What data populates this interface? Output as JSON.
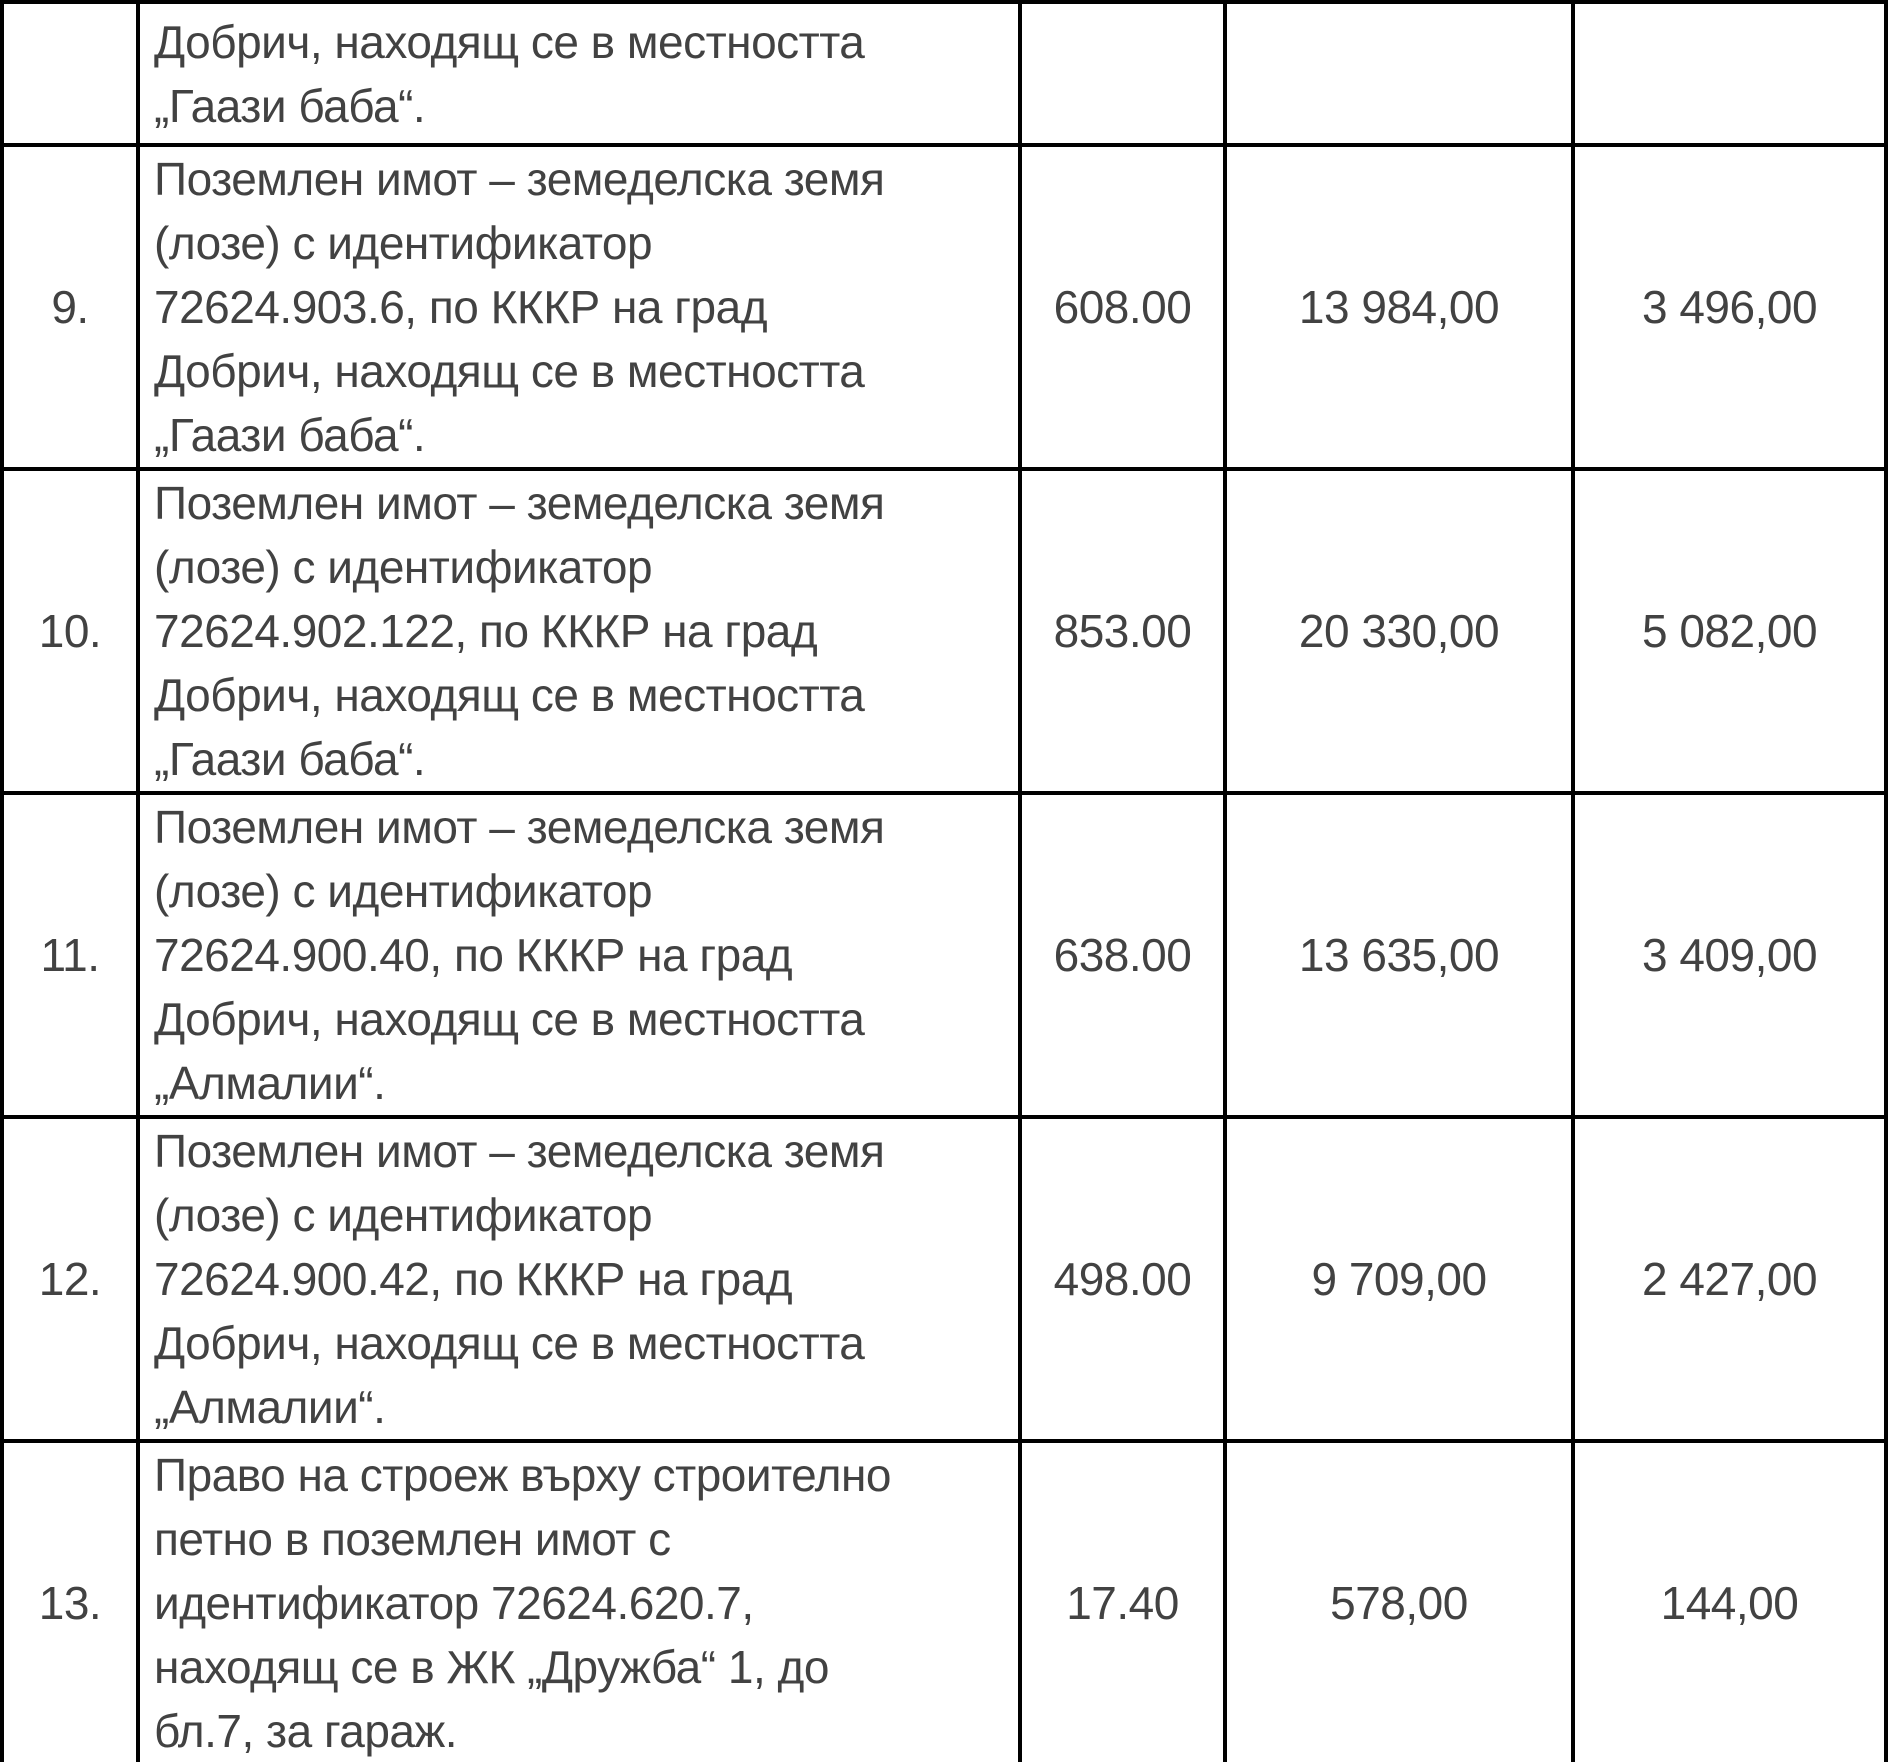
{
  "table": {
    "rows": [
      {
        "number": "",
        "description": "Добрич, находящ се в местността\n„Гаази баба“.",
        "col3": "",
        "col4": "",
        "col5": ""
      },
      {
        "number": "9.",
        "description": "Поземлен имот – земеделска земя\n(лозе) с идентификатор\n72624.903.6, по КККР на град\nДобрич, находящ се в местността\n„Гаази баба“.",
        "col3": "608.00",
        "col4": "13 984,00",
        "col5": "3 496,00"
      },
      {
        "number": "10.",
        "description": "Поземлен имот – земеделска земя\n(лозе) с идентификатор\n72624.902.122, по КККР на град\nДобрич, находящ се в местността\n„Гаази баба“.",
        "col3": "853.00",
        "col4": "20 330,00",
        "col5": "5 082,00"
      },
      {
        "number": "11.",
        "description": "Поземлен имот – земеделска земя\n(лозе) с идентификатор\n72624.900.40, по КККР на град\nДобрич, находящ се в местността\n„Алмалии“.",
        "col3": "638.00",
        "col4": "13 635,00",
        "col5": "3 409,00"
      },
      {
        "number": "12.",
        "description": "Поземлен имот – земеделска земя\n(лозе) с идентификатор\n72624.900.42, по КККР на град\nДобрич, находящ се в местността\n„Алмалии“.",
        "col3": "498.00",
        "col4": "9 709,00",
        "col5": "2 427,00"
      },
      {
        "number": "13.",
        "description": "Право на строеж върху строително\nпетно в поземлен имот с\nидентификатор 72624.620.7,\nнаходящ се в ЖК „Дружба“ 1, до\nбл.7, за гараж.",
        "col3": "17.40",
        "col4": "578,00",
        "col5": "144,00"
      }
    ]
  }
}
